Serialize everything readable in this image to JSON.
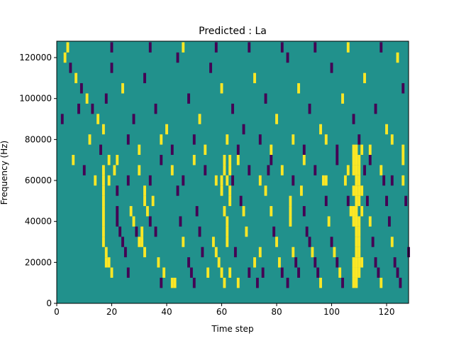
{
  "chart_data": {
    "type": "heatmap",
    "title": "Predicted : La",
    "xlabel": "Time step",
    "ylabel": "Frequency (Hz)",
    "xlim": [
      0,
      128
    ],
    "ylim": [
      0,
      128000
    ],
    "x_ticks": [
      "0",
      "20",
      "40",
      "60",
      "80",
      "100",
      "120"
    ],
    "y_ticks": [
      "0",
      "20000",
      "40000",
      "60000",
      "80000",
      "100000",
      "120000"
    ],
    "grid": false,
    "colormap": "viridis",
    "values_present": [
      -1,
      0,
      1
    ],
    "background_value": 0,
    "colors": {
      "-1": "#440154",
      "0": "#21918c",
      "1": "#fde725"
    },
    "marks_note": "Sparse grid of time-step x frequency-bin cells; 1 = yellow, -1 = purple, others 0.",
    "marks": [
      [
        17,
        65000,
        1
      ],
      [
        17,
        60000,
        1
      ],
      [
        17,
        55000,
        1
      ],
      [
        17,
        50000,
        1
      ],
      [
        17,
        45000,
        1
      ],
      [
        17,
        40000,
        1
      ],
      [
        17,
        35000,
        1
      ],
      [
        17,
        30000,
        1
      ],
      [
        18,
        25000,
        1
      ],
      [
        18,
        20000,
        1
      ],
      [
        19,
        70000,
        1
      ],
      [
        19,
        60000,
        1
      ],
      [
        19,
        20000,
        1
      ],
      [
        20,
        15000,
        1
      ],
      [
        21,
        65000,
        1
      ],
      [
        22,
        55000,
        -1
      ],
      [
        22,
        45000,
        -1
      ],
      [
        22,
        40000,
        -1
      ],
      [
        23,
        35000,
        -1
      ],
      [
        24,
        30000,
        -1
      ],
      [
        25,
        25000,
        -1
      ],
      [
        26,
        15000,
        -1
      ],
      [
        27,
        45000,
        1
      ],
      [
        28,
        40000,
        1
      ],
      [
        29,
        35000,
        -1
      ],
      [
        30,
        30000,
        1
      ],
      [
        31,
        35000,
        1
      ],
      [
        31,
        30000,
        1
      ],
      [
        32,
        55000,
        1
      ],
      [
        32,
        50000,
        1
      ],
      [
        32,
        25000,
        1
      ],
      [
        33,
        45000,
        1
      ],
      [
        34,
        40000,
        -1
      ],
      [
        35,
        50000,
        1
      ],
      [
        36,
        35000,
        -1
      ],
      [
        37,
        20000,
        1
      ],
      [
        38,
        10000,
        -1
      ],
      [
        39,
        15000,
        1
      ],
      [
        42,
        10000,
        1
      ],
      [
        43,
        10000,
        1
      ],
      [
        44,
        55000,
        -1
      ],
      [
        45,
        40000,
        -1
      ],
      [
        46,
        30000,
        1
      ],
      [
        48,
        20000,
        -1
      ],
      [
        49,
        15000,
        -1
      ],
      [
        50,
        10000,
        -1
      ],
      [
        51,
        45000,
        -1
      ],
      [
        52,
        35000,
        -1
      ],
      [
        53,
        25000,
        -1
      ],
      [
        55,
        15000,
        1
      ],
      [
        57,
        30000,
        1
      ],
      [
        58,
        25000,
        1
      ],
      [
        59,
        20000,
        1
      ],
      [
        60,
        60000,
        1
      ],
      [
        60,
        55000,
        1
      ],
      [
        60,
        15000,
        1
      ],
      [
        61,
        70000,
        1
      ],
      [
        61,
        65000,
        1
      ],
      [
        61,
        45000,
        1
      ],
      [
        61,
        10000,
        1
      ],
      [
        62,
        60000,
        1
      ],
      [
        62,
        40000,
        1
      ],
      [
        62,
        35000,
        1
      ],
      [
        62,
        30000,
        1
      ],
      [
        63,
        70000,
        1
      ],
      [
        63,
        65000,
        1
      ],
      [
        63,
        55000,
        1
      ],
      [
        63,
        50000,
        1
      ],
      [
        63,
        15000,
        1
      ],
      [
        64,
        60000,
        -1
      ],
      [
        65,
        25000,
        -1
      ],
      [
        66,
        10000,
        1
      ],
      [
        67,
        50000,
        -1
      ],
      [
        68,
        45000,
        1
      ],
      [
        69,
        35000,
        1
      ],
      [
        70,
        15000,
        -1
      ],
      [
        72,
        20000,
        1
      ],
      [
        73,
        10000,
        -1
      ],
      [
        74,
        25000,
        1
      ],
      [
        75,
        15000,
        -1
      ],
      [
        76,
        55000,
        1
      ],
      [
        77,
        65000,
        -1
      ],
      [
        78,
        45000,
        1
      ],
      [
        79,
        35000,
        -1
      ],
      [
        80,
        30000,
        1
      ],
      [
        81,
        20000,
        1
      ],
      [
        82,
        15000,
        -1
      ],
      [
        84,
        10000,
        -1
      ],
      [
        85,
        50000,
        1
      ],
      [
        85,
        45000,
        1
      ],
      [
        85,
        40000,
        1
      ],
      [
        86,
        25000,
        1
      ],
      [
        87,
        20000,
        -1
      ],
      [
        88,
        15000,
        -1
      ],
      [
        89,
        55000,
        1
      ],
      [
        90,
        45000,
        -1
      ],
      [
        91,
        35000,
        -1
      ],
      [
        92,
        30000,
        -1
      ],
      [
        93,
        25000,
        1
      ],
      [
        94,
        20000,
        -1
      ],
      [
        95,
        15000,
        -1
      ],
      [
        96,
        10000,
        1
      ],
      [
        97,
        60000,
        1
      ],
      [
        98,
        50000,
        -1
      ],
      [
        99,
        40000,
        1
      ],
      [
        100,
        30000,
        -1
      ],
      [
        101,
        25000,
        1
      ],
      [
        102,
        20000,
        -1
      ],
      [
        103,
        15000,
        1
      ],
      [
        104,
        10000,
        -1
      ],
      [
        105,
        60000,
        1
      ],
      [
        106,
        50000,
        -1
      ],
      [
        107,
        45000,
        1
      ],
      [
        108,
        75000,
        1
      ],
      [
        108,
        70000,
        1
      ],
      [
        108,
        65000,
        1
      ],
      [
        108,
        55000,
        1
      ],
      [
        108,
        45000,
        1
      ],
      [
        108,
        40000,
        1
      ],
      [
        108,
        20000,
        1
      ],
      [
        108,
        15000,
        1
      ],
      [
        108,
        10000,
        1
      ],
      [
        109,
        75000,
        1
      ],
      [
        109,
        70000,
        1
      ],
      [
        109,
        65000,
        1
      ],
      [
        109,
        60000,
        1
      ],
      [
        109,
        55000,
        1
      ],
      [
        109,
        50000,
        1
      ],
      [
        109,
        45000,
        1
      ],
      [
        109,
        40000,
        1
      ],
      [
        109,
        35000,
        1
      ],
      [
        109,
        30000,
        1
      ],
      [
        109,
        25000,
        1
      ],
      [
        109,
        20000,
        1
      ],
      [
        109,
        15000,
        1
      ],
      [
        109,
        10000,
        1
      ],
      [
        110,
        70000,
        1
      ],
      [
        110,
        65000,
        1
      ],
      [
        110,
        60000,
        1
      ],
      [
        110,
        55000,
        1
      ],
      [
        110,
        50000,
        1
      ],
      [
        110,
        40000,
        1
      ],
      [
        110,
        35000,
        1
      ],
      [
        110,
        30000,
        1
      ],
      [
        110,
        25000,
        1
      ],
      [
        110,
        20000,
        1
      ],
      [
        110,
        15000,
        1
      ],
      [
        111,
        75000,
        1
      ],
      [
        111,
        55000,
        1
      ],
      [
        111,
        45000,
        1
      ],
      [
        111,
        20000,
        1
      ],
      [
        112,
        65000,
        -1
      ],
      [
        113,
        50000,
        -1
      ],
      [
        114,
        40000,
        1
      ],
      [
        115,
        30000,
        -1
      ],
      [
        116,
        20000,
        -1
      ],
      [
        117,
        15000,
        -1
      ],
      [
        118,
        10000,
        1
      ],
      [
        119,
        60000,
        -1
      ],
      [
        120,
        50000,
        -1
      ],
      [
        121,
        40000,
        -1
      ],
      [
        122,
        30000,
        1
      ],
      [
        123,
        20000,
        -1
      ],
      [
        124,
        15000,
        -1
      ],
      [
        125,
        10000,
        -1
      ],
      [
        126,
        60000,
        1
      ],
      [
        127,
        50000,
        -1
      ],
      [
        128,
        25000,
        -1
      ],
      [
        3,
        120000,
        1
      ],
      [
        5,
        115000,
        -1
      ],
      [
        7,
        110000,
        1
      ],
      [
        9,
        105000,
        -1
      ],
      [
        11,
        100000,
        1
      ],
      [
        13,
        95000,
        -1
      ],
      [
        15,
        90000,
        1
      ],
      [
        17,
        85000,
        1
      ],
      [
        20,
        115000,
        -1
      ],
      [
        24,
        105000,
        1
      ],
      [
        28,
        90000,
        -1
      ],
      [
        32,
        110000,
        -1
      ],
      [
        36,
        95000,
        -1
      ],
      [
        40,
        85000,
        1
      ],
      [
        44,
        120000,
        -1
      ],
      [
        48,
        100000,
        -1
      ],
      [
        52,
        90000,
        1
      ],
      [
        56,
        115000,
        -1
      ],
      [
        60,
        105000,
        1
      ],
      [
        64,
        95000,
        -1
      ],
      [
        68,
        85000,
        -1
      ],
      [
        72,
        110000,
        1
      ],
      [
        76,
        100000,
        -1
      ],
      [
        80,
        90000,
        1
      ],
      [
        84,
        120000,
        -1
      ],
      [
        88,
        105000,
        1
      ],
      [
        92,
        95000,
        -1
      ],
      [
        96,
        85000,
        1
      ],
      [
        100,
        115000,
        -1
      ],
      [
        104,
        100000,
        1
      ],
      [
        108,
        90000,
        -1
      ],
      [
        112,
        110000,
        1
      ],
      [
        116,
        95000,
        -1
      ],
      [
        120,
        85000,
        1
      ],
      [
        124,
        120000,
        1
      ],
      [
        126,
        105000,
        -1
      ],
      [
        4,
        125000,
        1
      ],
      [
        8,
        95000,
        -1
      ],
      [
        12,
        80000,
        1
      ],
      [
        16,
        75000,
        -1
      ],
      [
        20,
        125000,
        -1
      ],
      [
        26,
        80000,
        -1
      ],
      [
        30,
        75000,
        1
      ],
      [
        34,
        125000,
        -1
      ],
      [
        38,
        80000,
        1
      ],
      [
        42,
        75000,
        -1
      ],
      [
        46,
        125000,
        1
      ],
      [
        50,
        80000,
        -1
      ],
      [
        54,
        75000,
        1
      ],
      [
        58,
        125000,
        -1
      ],
      [
        62,
        80000,
        1
      ],
      [
        66,
        75000,
        -1
      ],
      [
        70,
        125000,
        -1
      ],
      [
        74,
        80000,
        -1
      ],
      [
        78,
        75000,
        1
      ],
      [
        82,
        125000,
        -1
      ],
      [
        86,
        80000,
        1
      ],
      [
        90,
        75000,
        -1
      ],
      [
        94,
        125000,
        -1
      ],
      [
        98,
        80000,
        1
      ],
      [
        102,
        75000,
        -1
      ],
      [
        106,
        125000,
        1
      ],
      [
        110,
        80000,
        -1
      ],
      [
        114,
        75000,
        1
      ],
      [
        118,
        125000,
        -1
      ],
      [
        122,
        80000,
        1
      ],
      [
        126,
        75000,
        1
      ],
      [
        2,
        90000,
        -1
      ],
      [
        6,
        70000,
        1
      ],
      [
        10,
        65000,
        -1
      ],
      [
        14,
        60000,
        1
      ],
      [
        18,
        100000,
        -1
      ],
      [
        22,
        70000,
        1
      ],
      [
        26,
        60000,
        -1
      ],
      [
        30,
        65000,
        1
      ],
      [
        34,
        60000,
        -1
      ],
      [
        38,
        70000,
        -1
      ],
      [
        42,
        65000,
        1
      ],
      [
        46,
        60000,
        -1
      ],
      [
        50,
        70000,
        1
      ],
      [
        54,
        65000,
        -1
      ],
      [
        58,
        60000,
        1
      ],
      [
        66,
        70000,
        1
      ],
      [
        70,
        65000,
        -1
      ],
      [
        74,
        60000,
        1
      ],
      [
        78,
        70000,
        -1
      ],
      [
        82,
        65000,
        1
      ],
      [
        86,
        60000,
        -1
      ],
      [
        90,
        70000,
        1
      ],
      [
        94,
        65000,
        -1
      ],
      [
        98,
        60000,
        1
      ],
      [
        102,
        70000,
        -1
      ],
      [
        106,
        65000,
        1
      ],
      [
        114,
        70000,
        -1
      ],
      [
        118,
        65000,
        1
      ],
      [
        122,
        60000,
        -1
      ],
      [
        126,
        70000,
        1
      ]
    ]
  }
}
